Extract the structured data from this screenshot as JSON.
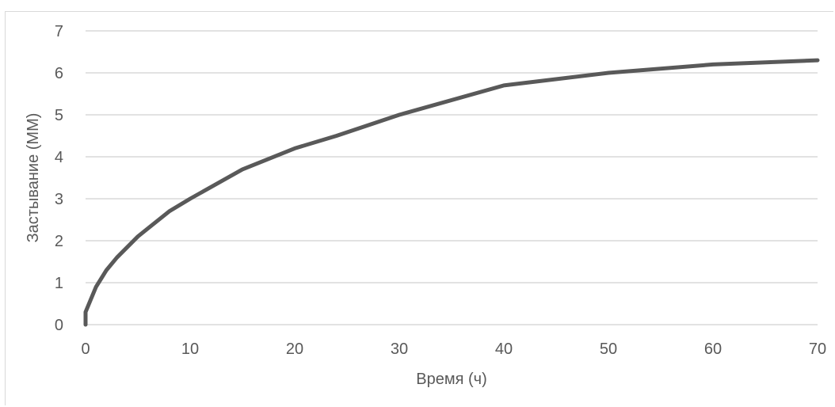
{
  "chart_data": {
    "type": "line",
    "title": "",
    "xlabel": "Время (ч)",
    "ylabel": "Застывание (ММ)",
    "xlim": [
      0,
      70
    ],
    "ylim": [
      0,
      7
    ],
    "xticks": [
      0,
      10,
      20,
      30,
      40,
      50,
      60,
      70
    ],
    "yticks": [
      0,
      1,
      2,
      3,
      4,
      5,
      6,
      7
    ],
    "grid": "horizontal",
    "legend": "none",
    "line_color": "#595959",
    "grid_color": "#d9d9d9",
    "series": [
      {
        "x": [
          0,
          0,
          1,
          2,
          3,
          5,
          6,
          8,
          10,
          15,
          20,
          24,
          30,
          40,
          50,
          60,
          70
        ],
        "y": [
          0,
          0.3,
          0.9,
          1.3,
          1.6,
          2.1,
          2.3,
          2.7,
          3.0,
          3.7,
          4.2,
          4.5,
          5.0,
          5.7,
          6.0,
          6.2,
          6.3
        ]
      }
    ]
  }
}
